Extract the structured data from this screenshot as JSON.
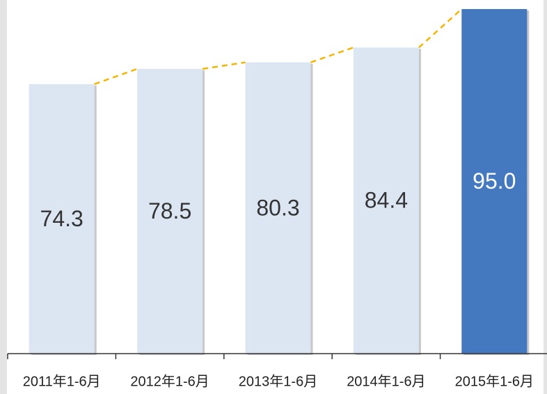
{
  "chart_data": {
    "type": "bar",
    "categories": [
      "2011年1-6月",
      "2012年1-6月",
      "2013年1-6月",
      "2014年1-6月",
      "2015年1-6月"
    ],
    "values": [
      74.3,
      78.5,
      80.3,
      84.4,
      95.0
    ],
    "value_labels": [
      "74.3",
      "78.5",
      "80.3",
      "84.4",
      "95.0"
    ],
    "colors": [
      "#dce6f2",
      "#dce6f2",
      "#dce6f2",
      "#dce6f2",
      "#4479c0"
    ],
    "line_color": "#f5b400",
    "ylim": [
      0,
      95
    ]
  }
}
